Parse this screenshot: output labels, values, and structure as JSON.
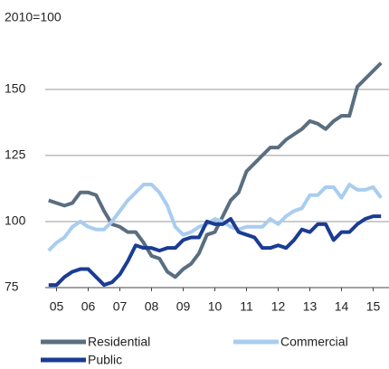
{
  "chart_data": {
    "type": "line",
    "subtitle": "2010=100",
    "x": [
      2005.25,
      2005.5,
      2005.75,
      2006,
      2006.25,
      2006.5,
      2006.75,
      2007,
      2007.25,
      2007.5,
      2007.75,
      2008,
      2008.25,
      2008.5,
      2008.75,
      2009,
      2009.25,
      2009.5,
      2009.75,
      2010,
      2010.25,
      2010.5,
      2010.75,
      2011,
      2011.25,
      2011.5,
      2011.75,
      2012,
      2012.25,
      2012.5,
      2012.75,
      2013,
      2013.25,
      2013.5,
      2013.75,
      2014,
      2014.25,
      2014.5,
      2014.75,
      2015,
      2015.25,
      2015.5,
      2015.75
    ],
    "series": [
      {
        "name": "Residential",
        "color": "#5a6e80",
        "values": [
          108,
          107,
          106,
          107,
          111,
          111,
          110,
          104,
          99,
          98,
          96,
          96,
          92,
          87,
          86,
          81,
          79,
          82,
          84,
          88,
          95,
          96,
          102,
          108,
          111,
          119,
          122,
          125,
          128,
          128,
          131,
          133,
          135,
          138,
          137,
          135,
          138,
          140,
          140,
          151,
          154,
          157,
          160
        ]
      },
      {
        "name": "Commercial",
        "color": "#a9cdef",
        "values": [
          89,
          92,
          94,
          98,
          100,
          98,
          97,
          97,
          100,
          104,
          108,
          111,
          114,
          114,
          111,
          106,
          98,
          95,
          96,
          98,
          99,
          101,
          100,
          98,
          97,
          98,
          98,
          98,
          101,
          99,
          102,
          104,
          105,
          110,
          110,
          113,
          113,
          109,
          114,
          112,
          112,
          113,
          109
        ]
      },
      {
        "name": "Public",
        "color": "#1a3c93",
        "values": [
          76,
          76,
          79,
          81,
          82,
          82,
          79,
          76,
          77,
          80,
          85,
          91,
          90,
          90,
          89,
          90,
          90,
          93,
          94,
          94,
          100,
          99,
          99,
          101,
          96,
          95,
          94,
          90,
          90,
          91,
          90,
          93,
          97,
          96,
          99,
          99,
          93,
          96,
          96,
          99,
          101,
          102,
          102
        ]
      }
    ],
    "xlim": [
      2005,
      2016
    ],
    "xticks": [
      {
        "value": 2005.5,
        "label": "05"
      },
      {
        "value": 2006.5,
        "label": "06"
      },
      {
        "value": 2007.5,
        "label": "07"
      },
      {
        "value": 2008.5,
        "label": "08"
      },
      {
        "value": 2009.5,
        "label": "09"
      },
      {
        "value": 2010.5,
        "label": "10"
      },
      {
        "value": 2011.5,
        "label": "11"
      },
      {
        "value": 2012.5,
        "label": "12"
      },
      {
        "value": 2013.5,
        "label": "13"
      },
      {
        "value": 2014.5,
        "label": "14"
      },
      {
        "value": 2015.5,
        "label": "15"
      }
    ],
    "ylim": [
      75,
      165
    ],
    "yticks": [
      75,
      100,
      125,
      150
    ],
    "grid": true
  }
}
